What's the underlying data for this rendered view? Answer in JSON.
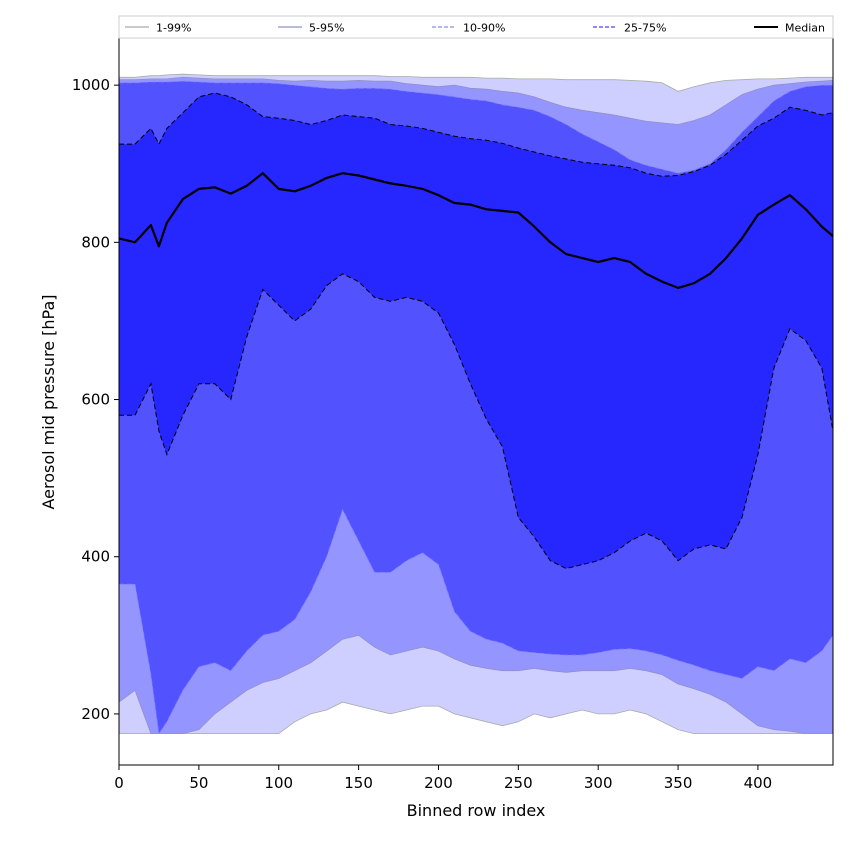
{
  "chart_data": {
    "type": "area",
    "title": "",
    "xlabel": "Binned row index",
    "ylabel": "Aerosol mid pressure [hPa]",
    "xlim": [
      0,
      447
    ],
    "ylim": [
      135,
      1060
    ],
    "x_ticks": [
      0,
      50,
      100,
      150,
      200,
      250,
      300,
      350,
      400
    ],
    "y_ticks": [
      200,
      400,
      600,
      800,
      1000
    ],
    "grid": false,
    "legend_position": "top",
    "x": [
      0,
      10,
      20,
      25,
      30,
      40,
      50,
      60,
      70,
      80,
      90,
      100,
      110,
      120,
      130,
      140,
      150,
      160,
      170,
      180,
      190,
      200,
      210,
      220,
      230,
      240,
      250,
      260,
      270,
      280,
      290,
      300,
      310,
      320,
      330,
      340,
      350,
      360,
      370,
      380,
      390,
      400,
      410,
      420,
      430,
      440,
      447
    ],
    "bands": [
      {
        "name": "1-99%",
        "color": "#cfcfff",
        "line_color": "#aaaaaa",
        "line_style": "solid",
        "lower": [
          175,
          175,
          175,
          175,
          175,
          175,
          175,
          175,
          175,
          175,
          175,
          175,
          190,
          200,
          205,
          215,
          210,
          205,
          200,
          205,
          210,
          210,
          200,
          195,
          190,
          185,
          190,
          200,
          195,
          200,
          205,
          200,
          200,
          205,
          200,
          190,
          180,
          175,
          175,
          175,
          175,
          175,
          175,
          175,
          175,
          175,
          175
        ],
        "upper": [
          1010,
          1010,
          1012,
          1012,
          1013,
          1014,
          1013,
          1012,
          1012,
          1012,
          1012,
          1012,
          1012,
          1012,
          1012,
          1012,
          1012,
          1012,
          1011,
          1011,
          1010,
          1010,
          1010,
          1010,
          1009,
          1009,
          1008,
          1008,
          1008,
          1007,
          1007,
          1007,
          1007,
          1006,
          1005,
          1003,
          992,
          998,
          1003,
          1006,
          1007,
          1008,
          1008,
          1009,
          1010,
          1010,
          1010
        ]
      },
      {
        "name": "5-95%",
        "color": "#9595ff",
        "line_color": "#9090c8",
        "line_style": "solid",
        "lower": [
          215,
          230,
          175,
          175,
          175,
          175,
          180,
          200,
          215,
          230,
          240,
          245,
          255,
          265,
          280,
          295,
          300,
          285,
          275,
          280,
          285,
          280,
          270,
          262,
          258,
          255,
          255,
          258,
          255,
          253,
          255,
          255,
          255,
          258,
          255,
          250,
          238,
          232,
          225,
          215,
          200,
          185,
          180,
          178,
          175,
          175,
          175
        ],
        "upper": [
          1007,
          1007,
          1008,
          1008,
          1008,
          1010,
          1009,
          1008,
          1008,
          1008,
          1008,
          1006,
          1005,
          1006,
          1005,
          1005,
          1006,
          1005,
          1005,
          1002,
          1000,
          998,
          1000,
          996,
          995,
          992,
          990,
          985,
          978,
          972,
          968,
          965,
          962,
          958,
          954,
          952,
          950,
          955,
          962,
          975,
          988,
          995,
          1000,
          1002,
          1004,
          1005,
          1006
        ]
      },
      {
        "name": "10-90%",
        "color": "#5252ff",
        "line_color": "#7f7fff",
        "line_style": "dashed",
        "lower": [
          365,
          365,
          250,
          175,
          190,
          230,
          260,
          265,
          255,
          280,
          300,
          305,
          320,
          355,
          400,
          460,
          420,
          380,
          380,
          395,
          405,
          390,
          330,
          305,
          295,
          290,
          280,
          278,
          276,
          275,
          275,
          278,
          282,
          283,
          280,
          275,
          268,
          262,
          255,
          250,
          245,
          260,
          255,
          270,
          265,
          280,
          300
        ],
        "upper": [
          1003,
          1003,
          1004,
          1004,
          1004,
          1005,
          1004,
          1003,
          1003,
          1003,
          1003,
          1002,
          1000,
          998,
          996,
          995,
          996,
          996,
          995,
          992,
          990,
          988,
          985,
          982,
          980,
          975,
          972,
          968,
          960,
          950,
          938,
          928,
          918,
          905,
          898,
          893,
          888,
          892,
          900,
          918,
          940,
          960,
          980,
          992,
          998,
          1000,
          1000
        ]
      },
      {
        "name": "25-75%",
        "color": "#2626ff",
        "line_color": "#000000",
        "line_style": "dashed",
        "lower": [
          580,
          580,
          620,
          560,
          530,
          580,
          620,
          620,
          600,
          680,
          740,
          720,
          700,
          715,
          745,
          760,
          750,
          730,
          725,
          730,
          725,
          710,
          670,
          620,
          575,
          540,
          450,
          425,
          395,
          385,
          390,
          395,
          405,
          420,
          430,
          420,
          395,
          410,
          415,
          410,
          450,
          530,
          640,
          690,
          675,
          640,
          560
        ],
        "upper": [
          925,
          925,
          945,
          925,
          945,
          965,
          985,
          990,
          985,
          975,
          960,
          958,
          955,
          950,
          955,
          962,
          960,
          958,
          950,
          948,
          945,
          940,
          935,
          932,
          930,
          926,
          920,
          915,
          910,
          906,
          902,
          900,
          898,
          895,
          888,
          884,
          885,
          890,
          898,
          912,
          930,
          948,
          958,
          972,
          968,
          962,
          965
        ]
      }
    ],
    "series": [
      {
        "name": "Median",
        "type": "line",
        "color": "#000000",
        "values": [
          805,
          800,
          822,
          795,
          825,
          855,
          868,
          870,
          862,
          872,
          888,
          868,
          865,
          872,
          882,
          888,
          885,
          880,
          875,
          872,
          868,
          860,
          850,
          848,
          842,
          840,
          838,
          820,
          800,
          785,
          780,
          775,
          780,
          775,
          760,
          750,
          742,
          748,
          760,
          780,
          805,
          835,
          848,
          860,
          842,
          820,
          808
        ]
      }
    ],
    "legend": [
      "1-99%",
      "5-95%",
      "10-90%",
      "25-75%",
      "Median"
    ]
  }
}
